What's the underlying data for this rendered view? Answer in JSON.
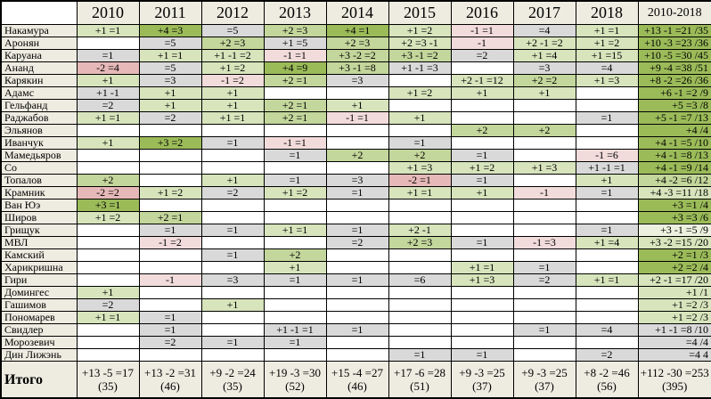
{
  "palette": {
    "w": "#ffffff",
    "g3": "#9bbb59",
    "g2": "#c3d69b",
    "g1": "#d7e4bc",
    "g0": "#ebf1de",
    "gr": "#d9d9d9",
    "pk": "#f2dcdb",
    "pk2": "#e6b9b8",
    "head": "#eeece1"
  },
  "chart_data": {
    "type": "table",
    "columns": [
      "",
      "2010",
      "2011",
      "2012",
      "2013",
      "2014",
      "2015",
      "2016",
      "2017",
      "2018",
      "2010-2018"
    ],
    "rows": [
      {
        "name": "Накамура",
        "cells": [
          [
            "+1 =1",
            "g1"
          ],
          [
            "+4 =3",
            "g3"
          ],
          [
            "=5",
            "gr"
          ],
          [
            "+2 =3",
            "g2"
          ],
          [
            "+4 =1",
            "g3"
          ],
          [
            "+1 =2",
            "g1"
          ],
          [
            "-1 =1",
            "pk"
          ],
          [
            "=4",
            "gr"
          ],
          [
            "+1 =1",
            "g1"
          ]
        ],
        "total": [
          "+13 -1 =21 /35",
          "g3"
        ]
      },
      {
        "name": "Аронян",
        "cells": [
          [
            "",
            "w"
          ],
          [
            "=5",
            "gr"
          ],
          [
            "+2 =3",
            "g2"
          ],
          [
            "+1 =5",
            "gr"
          ],
          [
            "+2 =3",
            "g2"
          ],
          [
            "+2 =3 -1",
            "g1"
          ],
          [
            "-1",
            "pk"
          ],
          [
            "+2 -1 =2",
            "g1"
          ],
          [
            "+1 =2",
            "g1"
          ]
        ],
        "total": [
          "+10 -3 =23 /36",
          "g3"
        ]
      },
      {
        "name": "Каруана",
        "cells": [
          [
            "=1",
            "gr"
          ],
          [
            "+1 =1",
            "g1"
          ],
          [
            "+1 -1 =2",
            "g1"
          ],
          [
            "-1 =1",
            "pk"
          ],
          [
            "+3 -2 =2",
            "g2"
          ],
          [
            "+3 -1 =2",
            "g2"
          ],
          [
            "=2",
            "gr"
          ],
          [
            "+1 =4",
            "g1"
          ],
          [
            "+1 =15",
            "g1"
          ]
        ],
        "total": [
          "+10 -5 =30 /45",
          "g3"
        ]
      },
      {
        "name": "Ананд",
        "cells": [
          [
            "-2 =4",
            "pk2"
          ],
          [
            "=5",
            "gr"
          ],
          [
            "+1 =2",
            "g1"
          ],
          [
            "+4 =9",
            "g3"
          ],
          [
            "+3 -1 =8",
            "g2"
          ],
          [
            "+1 -1 =3",
            "gr"
          ],
          [
            "",
            "w"
          ],
          [
            "=3",
            "gr"
          ],
          [
            "=4",
            "gr"
          ]
        ],
        "total": [
          "+9 -4 =38 /51",
          "g3"
        ]
      },
      {
        "name": "Карякин",
        "cells": [
          [
            "+1",
            "g1"
          ],
          [
            "=3",
            "gr"
          ],
          [
            "-1 =2",
            "pk"
          ],
          [
            "+2 =1",
            "g2"
          ],
          [
            "=3",
            "gr"
          ],
          [
            "",
            "w"
          ],
          [
            "+2 -1 =12",
            "g1"
          ],
          [
            "+2 =2",
            "g2"
          ],
          [
            "+1 =3",
            "g1"
          ]
        ],
        "total": [
          "+8 -2 =26 /36",
          "g3"
        ]
      },
      {
        "name": "Адамс",
        "cells": [
          [
            "+1 -1",
            "gr"
          ],
          [
            "+1",
            "g1"
          ],
          [
            "+1",
            "g1"
          ],
          [
            "",
            "w"
          ],
          [
            "",
            "w"
          ],
          [
            "+1 =2",
            "g1"
          ],
          [
            "+1",
            "g1"
          ],
          [
            "+1",
            "g1"
          ],
          [
            "",
            "w"
          ]
        ],
        "total": [
          "+6 -1 =2 /9",
          "g3"
        ]
      },
      {
        "name": "Гельфанд",
        "cells": [
          [
            "=2",
            "gr"
          ],
          [
            "+1",
            "g1"
          ],
          [
            "+1",
            "g1"
          ],
          [
            "+2 =1",
            "g2"
          ],
          [
            "+1",
            "g1"
          ],
          [
            "",
            "w"
          ],
          [
            "",
            "w"
          ],
          [
            "",
            "w"
          ],
          [
            "",
            "w"
          ]
        ],
        "total": [
          "+5 =3 /8",
          "g3"
        ]
      },
      {
        "name": "Раджабов",
        "cells": [
          [
            "+1 =1",
            "g1"
          ],
          [
            "=2",
            "gr"
          ],
          [
            "+1 =1",
            "g1"
          ],
          [
            "+2 =1",
            "g2"
          ],
          [
            "-1 =1",
            "pk"
          ],
          [
            "+1",
            "g1"
          ],
          [
            "",
            "w"
          ],
          [
            "",
            "w"
          ],
          [
            "=1",
            "gr"
          ]
        ],
        "total": [
          "+5 -1 =7 /13",
          "g3"
        ]
      },
      {
        "name": "Эльянов",
        "cells": [
          [
            "",
            "w"
          ],
          [
            "",
            "w"
          ],
          [
            "",
            "w"
          ],
          [
            "",
            "w"
          ],
          [
            "",
            "w"
          ],
          [
            "",
            "w"
          ],
          [
            "+2",
            "g2"
          ],
          [
            "+2",
            "g2"
          ],
          [
            "",
            "w"
          ]
        ],
        "total": [
          "+4 /4",
          "g3"
        ]
      },
      {
        "name": "Иванчук",
        "cells": [
          [
            "+1",
            "g1"
          ],
          [
            "+3 =2",
            "g3"
          ],
          [
            "=1",
            "gr"
          ],
          [
            "-1 =1",
            "pk"
          ],
          [
            "",
            "w"
          ],
          [
            "=1",
            "gr"
          ],
          [
            "",
            "w"
          ],
          [
            "",
            "w"
          ],
          [
            "",
            "w"
          ]
        ],
        "total": [
          "+4 -1 =5 /10",
          "g3"
        ]
      },
      {
        "name": "Мамедьяров",
        "cells": [
          [
            "",
            "w"
          ],
          [
            "",
            "w"
          ],
          [
            "",
            "w"
          ],
          [
            "=1",
            "gr"
          ],
          [
            "+2",
            "g2"
          ],
          [
            "+2",
            "g2"
          ],
          [
            "=1",
            "gr"
          ],
          [
            "",
            "w"
          ],
          [
            "-1 =6",
            "pk"
          ]
        ],
        "total": [
          "+4 -1 =8 /13",
          "g3"
        ]
      },
      {
        "name": "Со",
        "cells": [
          [
            "",
            "w"
          ],
          [
            "",
            "w"
          ],
          [
            "",
            "w"
          ],
          [
            "",
            "w"
          ],
          [
            "",
            "w"
          ],
          [
            "+1 =3",
            "g1"
          ],
          [
            "+1 =2",
            "g1"
          ],
          [
            "+1 =3",
            "g1"
          ],
          [
            "+1 -1 =1",
            "gr"
          ]
        ],
        "total": [
          "+4 -1 =9 /14",
          "g3"
        ]
      },
      {
        "name": "Топалов",
        "cells": [
          [
            "+2",
            "g2"
          ],
          [
            "",
            "w"
          ],
          [
            "+1",
            "g1"
          ],
          [
            "=1",
            "gr"
          ],
          [
            "=3",
            "gr"
          ],
          [
            "-2 =1",
            "pk2"
          ],
          [
            "=1",
            "gr"
          ],
          [
            "",
            "w"
          ],
          [
            "+1",
            "g1"
          ]
        ],
        "total": [
          "+4 -2 =6 /12",
          "g2"
        ]
      },
      {
        "name": "Крамник",
        "cells": [
          [
            "-2 =2",
            "pk2"
          ],
          [
            "+1 =2",
            "g1"
          ],
          [
            "=2",
            "gr"
          ],
          [
            "+1 =2",
            "g1"
          ],
          [
            "=1",
            "gr"
          ],
          [
            "+1 =1",
            "g1"
          ],
          [
            "+1",
            "g1"
          ],
          [
            "-1",
            "pk"
          ],
          [
            "=1",
            "gr"
          ]
        ],
        "total": [
          "+4 -3 =11 /18",
          "g1"
        ]
      },
      {
        "name": "Ван Юэ",
        "cells": [
          [
            "+3 =1",
            "g3"
          ],
          [
            "",
            "w"
          ],
          [
            "",
            "w"
          ],
          [
            "",
            "w"
          ],
          [
            "",
            "w"
          ],
          [
            "",
            "w"
          ],
          [
            "",
            "w"
          ],
          [
            "",
            "w"
          ],
          [
            "",
            "w"
          ]
        ],
        "total": [
          "+3 =1 /4",
          "g3"
        ]
      },
      {
        "name": "Широв",
        "cells": [
          [
            "+1 =2",
            "g1"
          ],
          [
            "+2 =1",
            "g2"
          ],
          [
            "",
            "w"
          ],
          [
            "",
            "w"
          ],
          [
            "",
            "w"
          ],
          [
            "",
            "w"
          ],
          [
            "",
            "w"
          ],
          [
            "",
            "w"
          ],
          [
            "",
            "w"
          ]
        ],
        "total": [
          "+3 =3 /6",
          "g3"
        ]
      },
      {
        "name": "Грищук",
        "cells": [
          [
            "",
            "w"
          ],
          [
            "=1",
            "gr"
          ],
          [
            "=1",
            "gr"
          ],
          [
            "+1 =1",
            "g1"
          ],
          [
            "=1",
            "gr"
          ],
          [
            "+2 -1",
            "g1"
          ],
          [
            "",
            "w"
          ],
          [
            "",
            "w"
          ],
          [
            "=1",
            "gr"
          ]
        ],
        "total": [
          "+3 -1 =5 /9",
          "g0"
        ]
      },
      {
        "name": "МВЛ",
        "cells": [
          [
            "",
            "w"
          ],
          [
            "-1 =2",
            "pk"
          ],
          [
            "",
            "w"
          ],
          [
            "",
            "w"
          ],
          [
            "=2",
            "gr"
          ],
          [
            "+2 =3",
            "g2"
          ],
          [
            "=1",
            "gr"
          ],
          [
            "-1 =3",
            "pk"
          ],
          [
            "+1 =4",
            "g1"
          ]
        ],
        "total": [
          "+3 -2 =15 /20",
          "g1"
        ]
      },
      {
        "name": "Камский",
        "cells": [
          [
            "",
            "w"
          ],
          [
            "",
            "w"
          ],
          [
            "=1",
            "gr"
          ],
          [
            "+2",
            "g2"
          ],
          [
            "",
            "w"
          ],
          [
            "",
            "w"
          ],
          [
            "",
            "w"
          ],
          [
            "",
            "w"
          ],
          [
            "",
            "w"
          ]
        ],
        "total": [
          "+2 =1 /3",
          "g3"
        ]
      },
      {
        "name": "Харикришна",
        "cells": [
          [
            "",
            "w"
          ],
          [
            "",
            "w"
          ],
          [
            "",
            "w"
          ],
          [
            "+1",
            "g1"
          ],
          [
            "",
            "w"
          ],
          [
            "",
            "w"
          ],
          [
            "+1 =1",
            "g1"
          ],
          [
            "=1",
            "gr"
          ],
          [
            "",
            "w"
          ]
        ],
        "total": [
          "+2 =2 /4",
          "g3"
        ]
      },
      {
        "name": "Гири",
        "cells": [
          [
            "",
            "w"
          ],
          [
            "-1",
            "pk"
          ],
          [
            "=3",
            "gr"
          ],
          [
            "=1",
            "gr"
          ],
          [
            "=1",
            "gr"
          ],
          [
            "=6",
            "gr"
          ],
          [
            "+1 =3",
            "g1"
          ],
          [
            "=2",
            "gr"
          ],
          [
            "+1 =1",
            "g1"
          ]
        ],
        "total": [
          "+2 -1 =17 /20",
          "g1"
        ]
      },
      {
        "name": "Домингес",
        "cells": [
          [
            "+1",
            "g1"
          ],
          [
            "",
            "w"
          ],
          [
            "",
            "w"
          ],
          [
            "",
            "w"
          ],
          [
            "",
            "w"
          ],
          [
            "",
            "w"
          ],
          [
            "",
            "w"
          ],
          [
            "",
            "w"
          ],
          [
            "",
            "w"
          ]
        ],
        "total": [
          "+1 /1",
          "g1"
        ]
      },
      {
        "name": "Гашимов",
        "cells": [
          [
            "=2",
            "gr"
          ],
          [
            "",
            "w"
          ],
          [
            "+1",
            "g1"
          ],
          [
            "",
            "w"
          ],
          [
            "",
            "w"
          ],
          [
            "",
            "w"
          ],
          [
            "",
            "w"
          ],
          [
            "",
            "w"
          ],
          [
            "",
            "w"
          ]
        ],
        "total": [
          "+1 =2 /3",
          "g1"
        ]
      },
      {
        "name": "Пономарев",
        "cells": [
          [
            "+1 =1",
            "g1"
          ],
          [
            "=1",
            "gr"
          ],
          [
            "",
            "w"
          ],
          [
            "",
            "w"
          ],
          [
            "",
            "w"
          ],
          [
            "",
            "w"
          ],
          [
            "",
            "w"
          ],
          [
            "",
            "w"
          ],
          [
            "",
            "w"
          ]
        ],
        "total": [
          "+1 =2 /3",
          "g1"
        ]
      },
      {
        "name": "Свидлер",
        "cells": [
          [
            "",
            "w"
          ],
          [
            "=1",
            "gr"
          ],
          [
            "",
            "w"
          ],
          [
            "+1 -1 =1",
            "gr"
          ],
          [
            "=1",
            "gr"
          ],
          [
            "",
            "w"
          ],
          [
            "",
            "w"
          ],
          [
            "=1",
            "gr"
          ],
          [
            "=4",
            "gr"
          ]
        ],
        "total": [
          "+1 -1 =8 /10",
          "gr"
        ]
      },
      {
        "name": "Морозевич",
        "cells": [
          [
            "",
            "w"
          ],
          [
            "=2",
            "gr"
          ],
          [
            "=1",
            "gr"
          ],
          [
            "=1",
            "gr"
          ],
          [
            "",
            "w"
          ],
          [
            "",
            "w"
          ],
          [
            "",
            "w"
          ],
          [
            "",
            "w"
          ],
          [
            "",
            "w"
          ]
        ],
        "total": [
          "=4 /4",
          "gr"
        ]
      },
      {
        "name": "Дин Лижэнь",
        "cells": [
          [
            "",
            "w"
          ],
          [
            "",
            "w"
          ],
          [
            "",
            "w"
          ],
          [
            "",
            "w"
          ],
          [
            "",
            "w"
          ],
          [
            "=1",
            "gr"
          ],
          [
            "=1",
            "gr"
          ],
          [
            "",
            "w"
          ],
          [
            "=2",
            "gr"
          ]
        ],
        "total": [
          "=4 4",
          "gr"
        ]
      }
    ],
    "footer": {
      "label": "Итого",
      "cells": [
        [
          "+13 -5 =17",
          "(35)"
        ],
        [
          "+13 -2 =31",
          "(46)"
        ],
        [
          "+9 -2 =24",
          "(35)"
        ],
        [
          "+19 -3 =30",
          "(52)"
        ],
        [
          "+15 -4 =27",
          "(46)"
        ],
        [
          "+17 -6 =28",
          "(51)"
        ],
        [
          "+9 -3 =25",
          "(37)"
        ],
        [
          "+9 -3 =25",
          "(37)"
        ],
        [
          "+8 -2 =46",
          "(56)"
        ]
      ],
      "total": [
        "+112 -30 =253",
        "(395)"
      ]
    }
  }
}
